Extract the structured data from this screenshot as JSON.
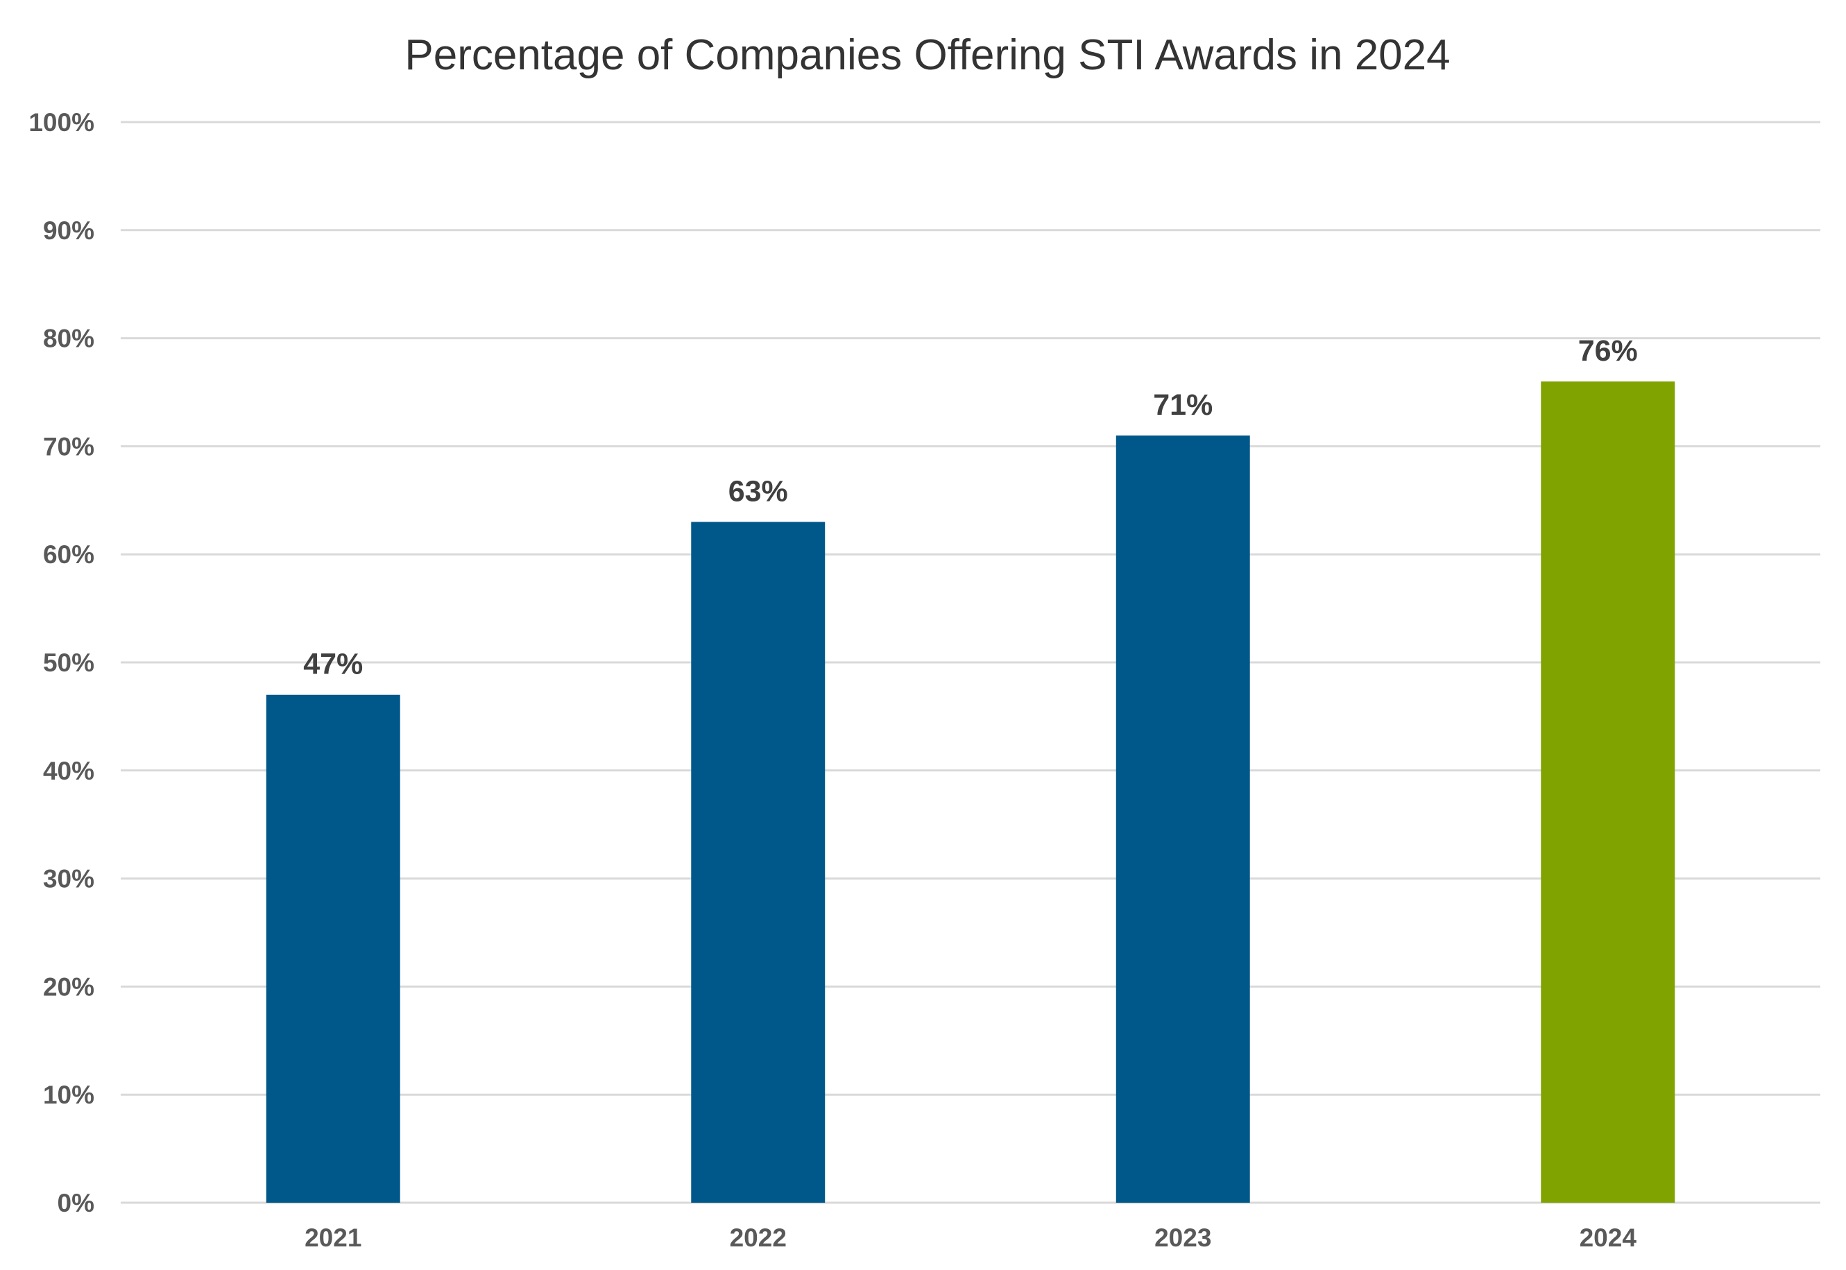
{
  "chart_data": {
    "type": "bar",
    "title": "Percentage of Companies Offering STI Awards in 2024",
    "xlabel": "",
    "ylabel": "",
    "categories": [
      "2021",
      "2022",
      "2023",
      "2024"
    ],
    "values": [
      47,
      63,
      71,
      76
    ],
    "data_labels": [
      "47%",
      "63%",
      "71%",
      "76%"
    ],
    "bar_colors": [
      "#00578a",
      "#00578a",
      "#00578a",
      "#80a300"
    ],
    "ylim": [
      0,
      100
    ],
    "yticks": [
      0,
      10,
      20,
      30,
      40,
      50,
      60,
      70,
      80,
      90,
      100
    ],
    "ytick_labels": [
      "0%",
      "10%",
      "20%",
      "30%",
      "40%",
      "50%",
      "60%",
      "70%",
      "80%",
      "90%",
      "100%"
    ],
    "grid": true,
    "legend": "none"
  }
}
